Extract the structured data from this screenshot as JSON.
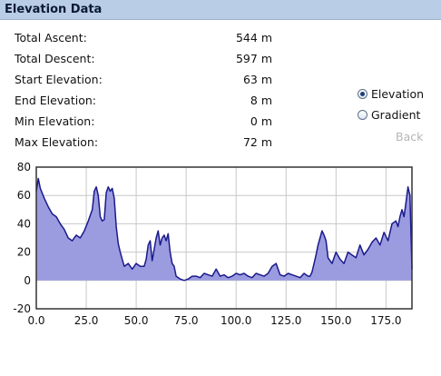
{
  "header": {
    "title": "Elevation Data"
  },
  "stats": [
    {
      "label": "Total Ascent:",
      "value": "544 m"
    },
    {
      "label": "Total Descent:",
      "value": "597 m"
    },
    {
      "label": "Start Elevation:",
      "value": "63 m"
    },
    {
      "label": "End Elevation:",
      "value": "8 m"
    },
    {
      "label": "Min Elevation:",
      "value": "0 m"
    },
    {
      "label": "Max Elevation:",
      "value": "72 m"
    }
  ],
  "view_options": {
    "elevation_label": "Elevation",
    "gradient_label": "Gradient",
    "selected": "Elevation",
    "back_label": "Back"
  },
  "colors": {
    "area_fill": "#9b9be0",
    "line": "#1a1a8c",
    "grid": "#c8c8c8",
    "header_bg": "#b9cde6"
  },
  "chart_data": {
    "type": "area",
    "title": "",
    "xlabel": "",
    "ylabel": "",
    "xlim": [
      0,
      188
    ],
    "ylim": [
      -20,
      80
    ],
    "x_ticks": [
      "0.0",
      "25.0",
      "50.0",
      "75.0",
      "100.0",
      "125.0",
      "150.0",
      "175.0"
    ],
    "x_tick_values": [
      0,
      25,
      50,
      75,
      100,
      125,
      150,
      175
    ],
    "y_ticks": [
      "80",
      "60",
      "40",
      "20",
      "0",
      "-20"
    ],
    "y_tick_values": [
      80,
      60,
      40,
      20,
      0,
      -20
    ],
    "grid": true,
    "series": [
      {
        "x": [
          0,
          1,
          2,
          4,
          6,
          8,
          10,
          12,
          14,
          16,
          18,
          20,
          22,
          24,
          26,
          28,
          29,
          30,
          31,
          32,
          33,
          34,
          35,
          36,
          37,
          38,
          39,
          40,
          41,
          42,
          43,
          44,
          46,
          48,
          50,
          52,
          54,
          55,
          56,
          57,
          58,
          59,
          60,
          61,
          62,
          63,
          64,
          65,
          66,
          67,
          68,
          69,
          70,
          72,
          74,
          76,
          78,
          80,
          82,
          84,
          86,
          88,
          90,
          92,
          94,
          96,
          98,
          100,
          102,
          104,
          106,
          108,
          110,
          112,
          114,
          116,
          118,
          120,
          122,
          124,
          126,
          128,
          130,
          132,
          134,
          136,
          137,
          138,
          139,
          140,
          141,
          142,
          143,
          144,
          145,
          146,
          148,
          150,
          152,
          154,
          156,
          158,
          160,
          162,
          164,
          166,
          168,
          170,
          172,
          174,
          176,
          178,
          180,
          181,
          182,
          183,
          184,
          185,
          186,
          187,
          188
        ],
        "y": [
          63,
          72,
          65,
          58,
          52,
          47,
          45,
          40,
          36,
          30,
          28,
          32,
          30,
          35,
          42,
          50,
          63,
          66,
          60,
          45,
          42,
          43,
          62,
          66,
          63,
          65,
          58,
          38,
          26,
          20,
          15,
          10,
          12,
          8,
          12,
          10,
          10,
          15,
          25,
          28,
          14,
          22,
          30,
          35,
          25,
          30,
          32,
          28,
          33,
          20,
          12,
          10,
          3,
          1,
          0,
          1,
          3,
          3,
          2,
          5,
          4,
          3,
          8,
          3,
          4,
          2,
          3,
          5,
          4,
          5,
          3,
          2,
          5,
          4,
          3,
          5,
          10,
          12,
          4,
          3,
          5,
          4,
          3,
          2,
          5,
          3,
          3,
          6,
          12,
          18,
          25,
          30,
          35,
          32,
          28,
          16,
          12,
          20,
          15,
          12,
          20,
          18,
          16,
          25,
          18,
          22,
          27,
          30,
          25,
          34,
          28,
          40,
          42,
          38,
          45,
          50,
          45,
          55,
          66,
          60,
          8
        ]
      }
    ]
  }
}
